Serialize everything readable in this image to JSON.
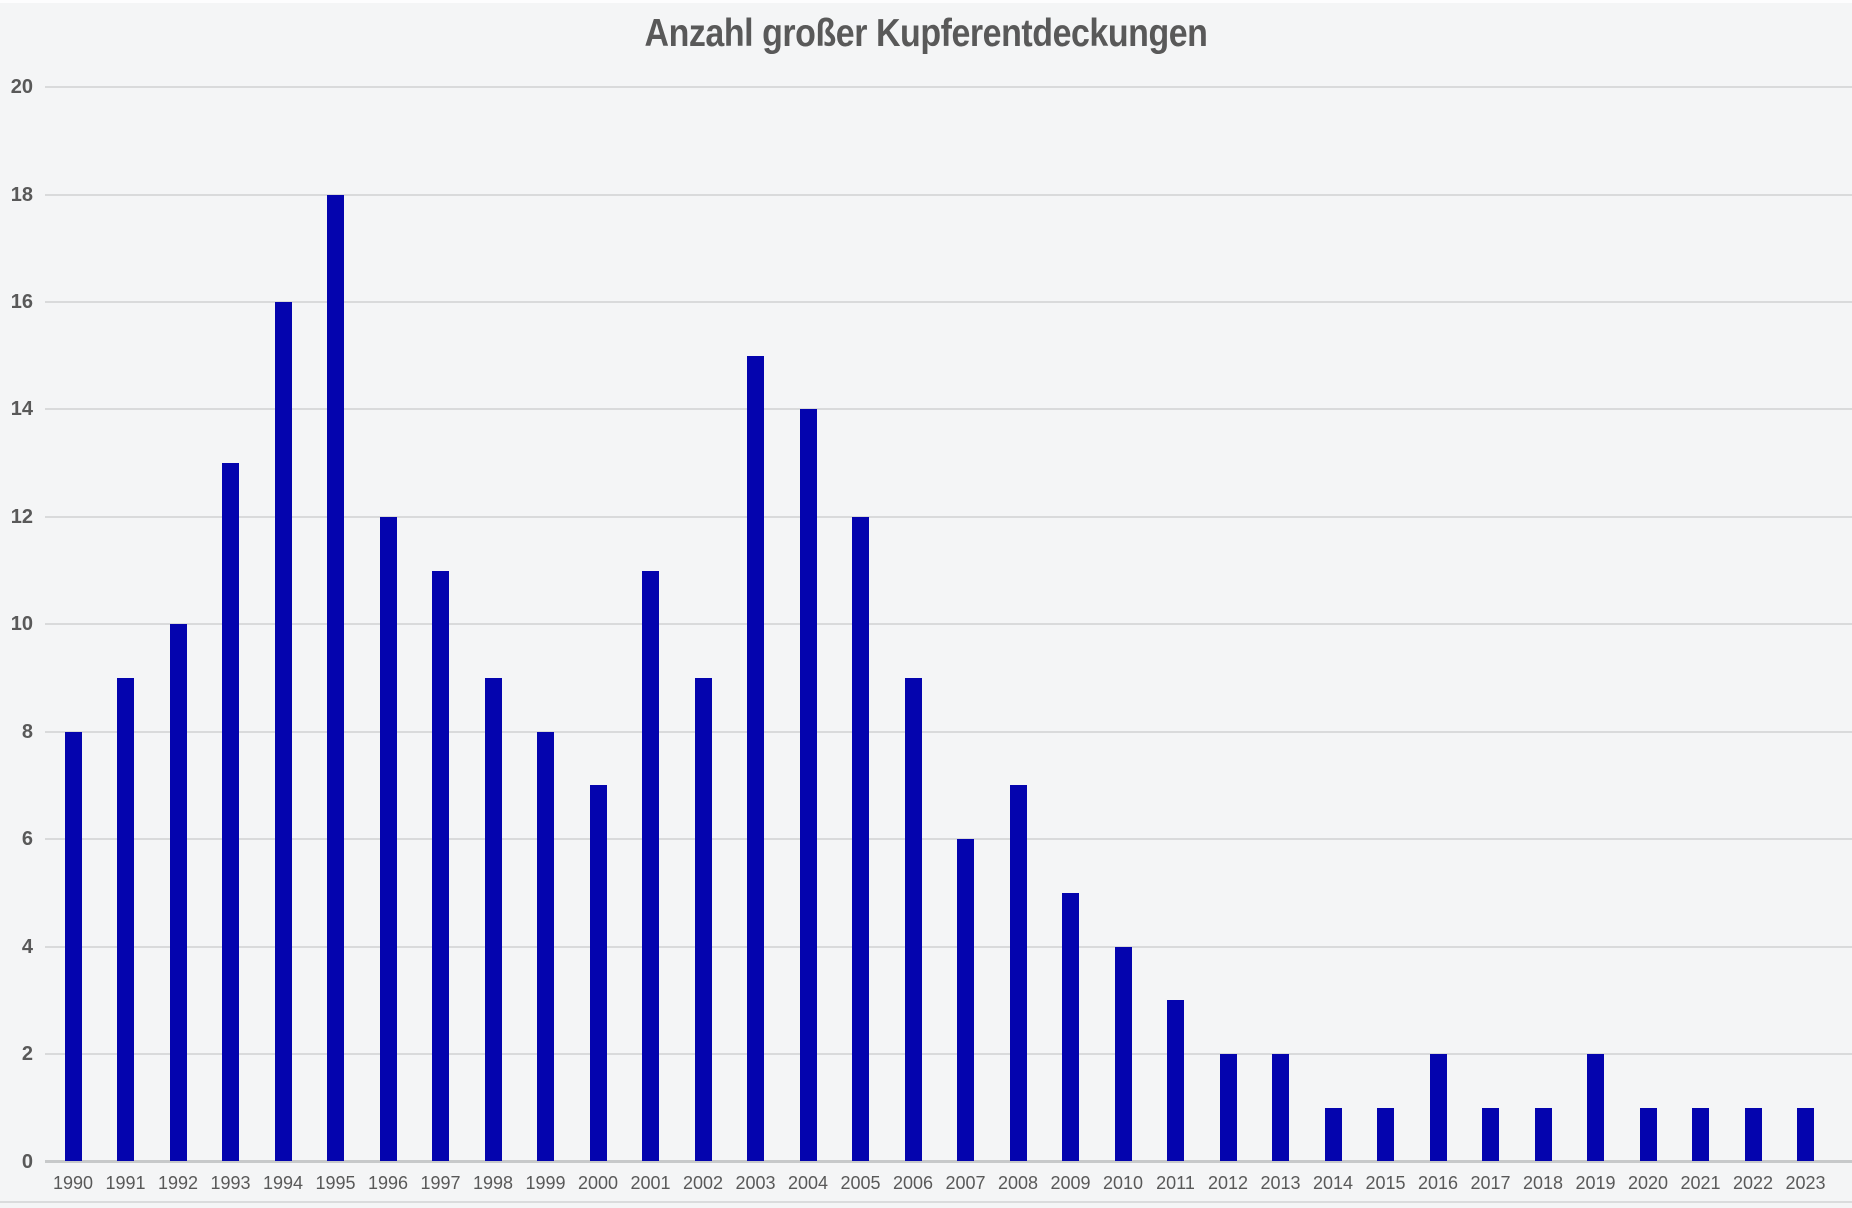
{
  "chart_data": {
    "type": "bar",
    "title": "Anzahl großer Kupferentdeckungen",
    "categories": [
      "1990",
      "1991",
      "1992",
      "1993",
      "1994",
      "1995",
      "1996",
      "1997",
      "1998",
      "1999",
      "2000",
      "2001",
      "2002",
      "2003",
      "2004",
      "2005",
      "2006",
      "2007",
      "2008",
      "2009",
      "2010",
      "2011",
      "2012",
      "2013",
      "2014",
      "2015",
      "2016",
      "2017",
      "2018",
      "2019",
      "2020",
      "2021",
      "2022",
      "2023"
    ],
    "values": [
      8,
      9,
      10,
      13,
      16,
      18,
      12,
      11,
      9,
      8,
      7,
      11,
      9,
      15,
      14,
      12,
      9,
      6,
      7,
      5,
      4,
      3,
      2,
      2,
      1,
      1,
      2,
      1,
      1,
      2,
      1,
      1,
      1,
      1
    ],
    "xlabel": "",
    "ylabel": "",
    "ylim": [
      0,
      20
    ],
    "ytick_step": 2,
    "grid": true,
    "legend": false,
    "colors": {
      "bar": "#0404AE",
      "background": "#f4f5f6",
      "gridline": "#d9dadb",
      "axis_line": "#c7c9ca",
      "labels": "#595959",
      "title": "#595959",
      "top_strip": "#fdfdfe",
      "bottom_border": "#dadbdc"
    }
  }
}
